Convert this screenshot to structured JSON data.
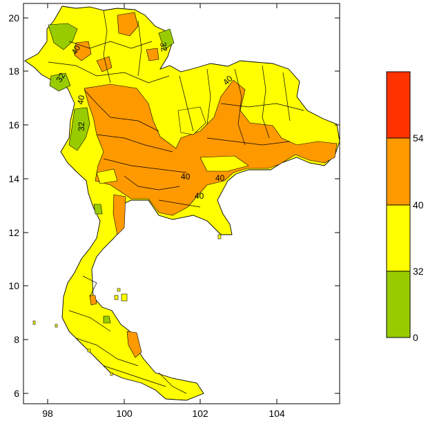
{
  "map": {
    "lon_ticks": [
      "98",
      "100",
      "102",
      "104"
    ],
    "lat_ticks": [
      "6",
      "8",
      "10",
      "12",
      "14",
      "16",
      "18",
      "20"
    ],
    "contour_labels": [
      "40",
      "40",
      "40",
      "40",
      "40",
      "40",
      "32",
      "32",
      "32"
    ]
  },
  "colorbar": {
    "levels": [
      "0",
      "32",
      "40",
      "54"
    ],
    "colors": [
      "#99cc00",
      "#ffff00",
      "#ff9900",
      "#ff3300"
    ]
  },
  "colors": {
    "land": "#ffff00",
    "hot": "#ff9900",
    "cool": "#99cc00",
    "extreme": "#ff3300",
    "border": "#000000"
  }
}
